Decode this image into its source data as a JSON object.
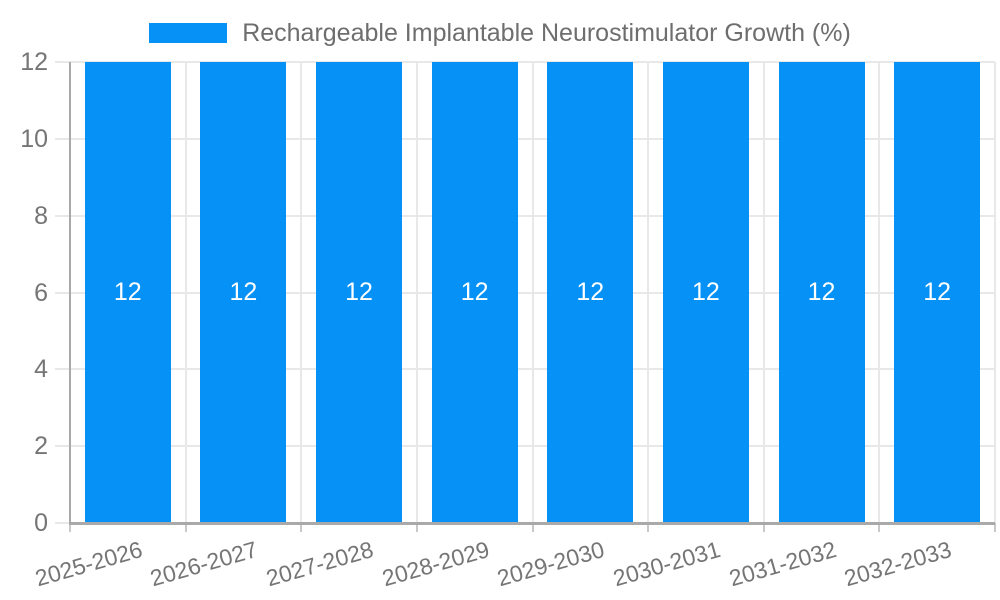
{
  "chart_data": {
    "type": "bar",
    "title": "Rechargeable Implantable Neurostimulator Growth (%)",
    "categories": [
      "2025-2026",
      "2026-2027",
      "2027-2028",
      "2028-2029",
      "2029-2030",
      "2030-2031",
      "2031-2032",
      "2032-2033"
    ],
    "values": [
      12,
      12,
      12,
      12,
      12,
      12,
      12,
      12
    ],
    "bar_value_labels": [
      "12",
      "12",
      "12",
      "12",
      "12",
      "12",
      "12",
      "12"
    ],
    "xlabel": "",
    "ylabel": "",
    "yticks": [
      0,
      2,
      4,
      6,
      8,
      10,
      12
    ],
    "ylim": [
      0,
      12
    ],
    "grid": true,
    "legend_position": "top-center",
    "colors": {
      "bar": "#0591f5",
      "bar_label": "#ffffff",
      "grid": "#e8e8e8",
      "axis": "#a9a9a9",
      "tick": "#c9c9c9",
      "tick_label": "#757575",
      "legend_text": "#6e6e6e",
      "background": "#ffffff"
    }
  }
}
